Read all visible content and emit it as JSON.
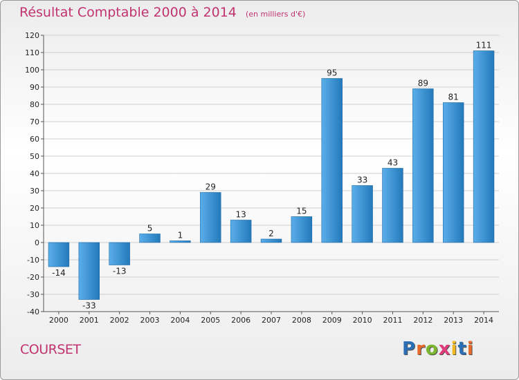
{
  "header": {
    "title": "Résultat Comptable 2000 à 2014",
    "subtitle": "(en milliers d'€)"
  },
  "footer": {
    "town": "COURSET",
    "brand": "Proxiti"
  },
  "colors": {
    "title": "#c1336f",
    "bar_light": "#5aaeea",
    "bar_dark": "#2479ba",
    "grid": "#cfcfcf",
    "axis_text": "#222222"
  },
  "chart_data": {
    "type": "bar",
    "title": "Résultat Comptable 2000 à 2014",
    "subtitle": "(en milliers d'€)",
    "categories": [
      "2000",
      "2001",
      "2002",
      "2003",
      "2004",
      "2005",
      "2006",
      "2007",
      "2008",
      "2009",
      "2010",
      "2011",
      "2012",
      "2013",
      "2014"
    ],
    "values": [
      -14,
      -33,
      -13,
      5,
      1,
      29,
      13,
      2,
      15,
      95,
      33,
      43,
      89,
      81,
      111
    ],
    "ylim": [
      -40,
      120
    ],
    "yticks": [
      -40,
      -30,
      -20,
      -10,
      0,
      10,
      20,
      30,
      40,
      50,
      60,
      70,
      80,
      90,
      100,
      110,
      120
    ],
    "grid": true,
    "data_labels": true
  }
}
